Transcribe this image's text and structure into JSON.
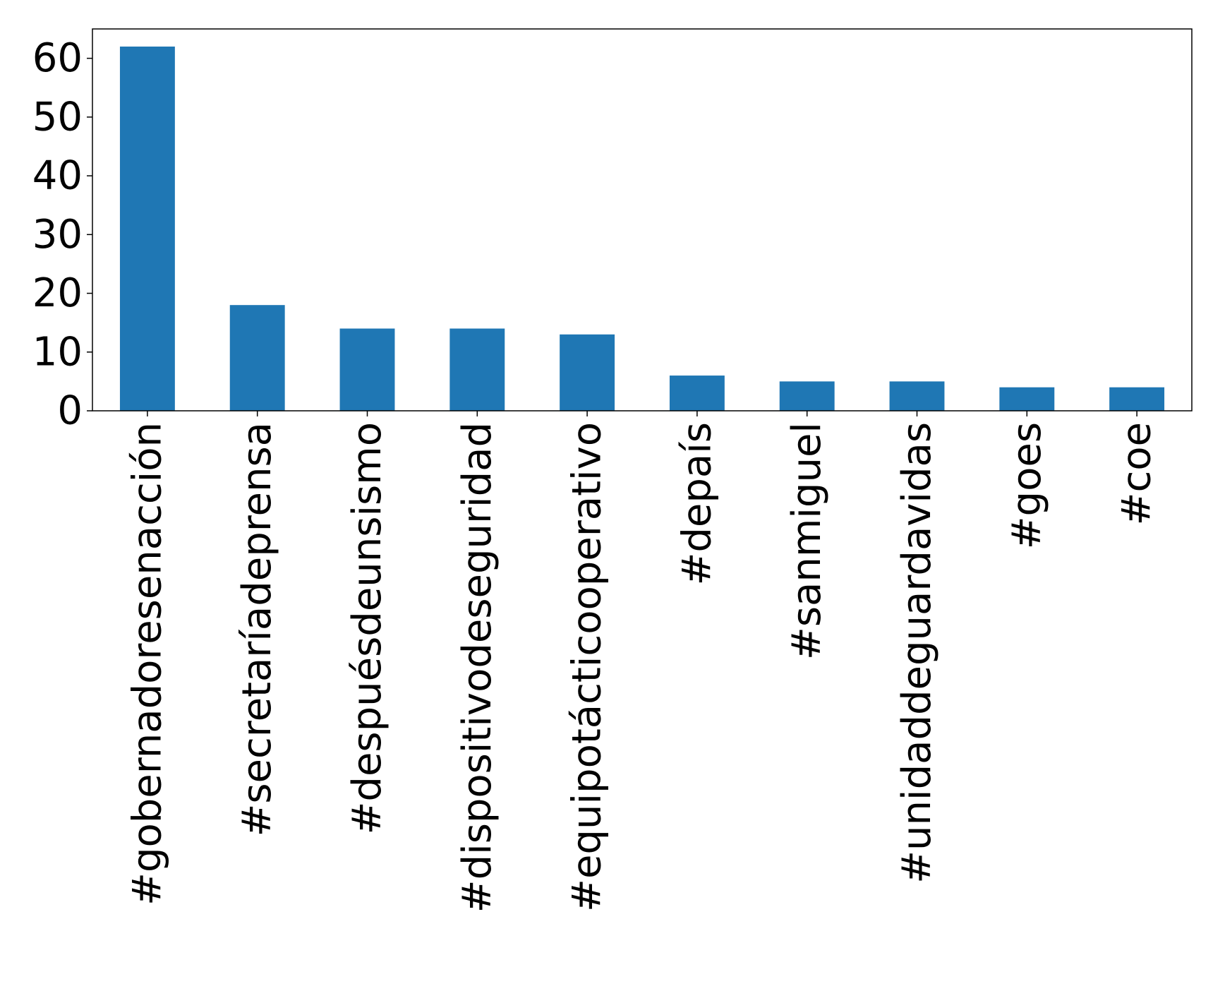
{
  "chart_data": {
    "type": "bar",
    "title": "",
    "xlabel": "",
    "ylabel": "",
    "categories": [
      "#gobernadoresenacción",
      "#secretaríadeprensa",
      "#despuésdeunsismo",
      "#dispositivodeseguridad",
      "#equipotácticooperativo",
      "#depaís",
      "#sanmiguel",
      "#unidaddeguardavidas",
      "#goes",
      "#coe"
    ],
    "values": [
      62,
      18,
      14,
      14,
      13,
      6,
      5,
      5,
      4,
      4
    ],
    "ylim": [
      0,
      65
    ],
    "yticks": [
      0,
      10,
      20,
      30,
      40,
      50,
      60
    ],
    "grid": false,
    "legend": "none",
    "bar_color": "#1f77b4"
  }
}
